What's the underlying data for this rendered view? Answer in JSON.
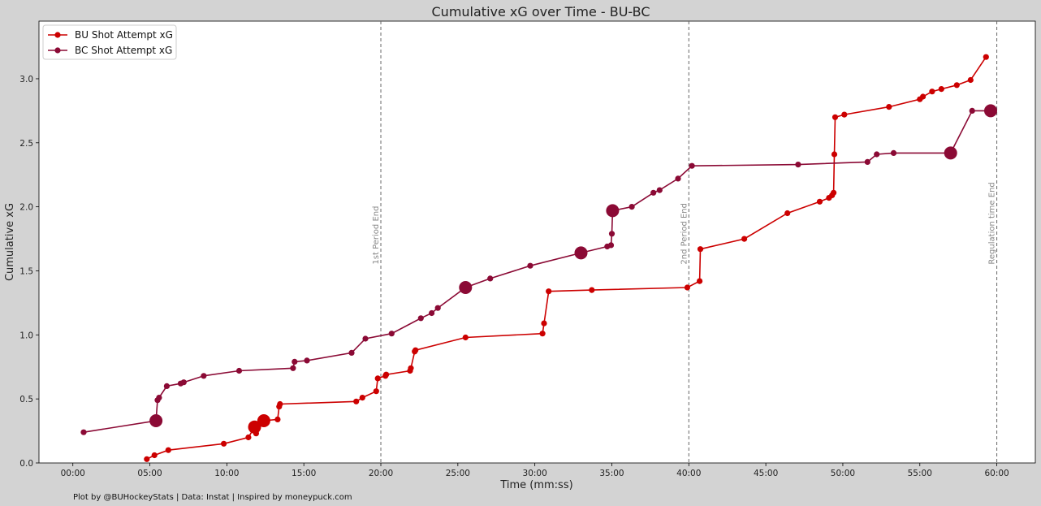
{
  "chart_data": {
    "type": "line",
    "title": "Cumulative xG over Time - BU-BC",
    "xlabel": "Time (mm:ss)",
    "ylabel": "Cumulative xG",
    "xlim": [
      -2.2,
      62.5
    ],
    "ylim": [
      0,
      3.45
    ],
    "x_ticks": [
      0,
      5,
      10,
      15,
      20,
      25,
      30,
      35,
      40,
      45,
      50,
      55,
      60
    ],
    "x_tick_labels": [
      "00:00",
      "05:00",
      "10:00",
      "15:00",
      "20:00",
      "25:00",
      "30:00",
      "35:00",
      "40:00",
      "45:00",
      "50:00",
      "55:00",
      "60:00"
    ],
    "y_ticks": [
      0.0,
      0.5,
      1.0,
      1.5,
      2.0,
      2.5,
      3.0
    ],
    "y_tick_labels": [
      "0.0",
      "0.5",
      "1.0",
      "1.5",
      "2.0",
      "2.5",
      "3.0"
    ],
    "legend_position": "top-left",
    "grid": false,
    "vertical_lines": [
      {
        "x": 20,
        "label": "1st Period End"
      },
      {
        "x": 40,
        "label": "2nd Period End"
      },
      {
        "x": 60,
        "label": "Regulation time End"
      }
    ],
    "series": [
      {
        "name": "BU Shot Attempt xG",
        "color": "#cc0000",
        "points": [
          {
            "x": 4.8,
            "y": 0.03
          },
          {
            "x": 5.3,
            "y": 0.06
          },
          {
            "x": 6.2,
            "y": 0.1
          },
          {
            "x": 9.8,
            "y": 0.15
          },
          {
            "x": 11.4,
            "y": 0.2
          },
          {
            "x": 11.8,
            "y": 0.28,
            "goal": true
          },
          {
            "x": 11.9,
            "y": 0.23
          },
          {
            "x": 12.4,
            "y": 0.33,
            "goal": true
          },
          {
            "x": 13.3,
            "y": 0.34
          },
          {
            "x": 13.4,
            "y": 0.44
          },
          {
            "x": 13.45,
            "y": 0.46
          },
          {
            "x": 18.4,
            "y": 0.48
          },
          {
            "x": 18.8,
            "y": 0.51
          },
          {
            "x": 19.7,
            "y": 0.56
          },
          {
            "x": 19.8,
            "y": 0.66
          },
          {
            "x": 20.3,
            "y": 0.68
          },
          {
            "x": 20.35,
            "y": 0.69
          },
          {
            "x": 21.9,
            "y": 0.72
          },
          {
            "x": 21.95,
            "y": 0.74
          },
          {
            "x": 22.2,
            "y": 0.87
          },
          {
            "x": 22.25,
            "y": 0.88
          },
          {
            "x": 25.5,
            "y": 0.98
          },
          {
            "x": 30.5,
            "y": 1.01
          },
          {
            "x": 30.6,
            "y": 1.09
          },
          {
            "x": 30.9,
            "y": 1.34
          },
          {
            "x": 33.7,
            "y": 1.35
          },
          {
            "x": 39.9,
            "y": 1.37
          },
          {
            "x": 40.7,
            "y": 1.42
          },
          {
            "x": 40.75,
            "y": 1.67
          },
          {
            "x": 43.6,
            "y": 1.75
          },
          {
            "x": 46.4,
            "y": 1.95
          },
          {
            "x": 48.5,
            "y": 2.04
          },
          {
            "x": 49.1,
            "y": 2.07
          },
          {
            "x": 49.3,
            "y": 2.09
          },
          {
            "x": 49.4,
            "y": 2.11
          },
          {
            "x": 49.45,
            "y": 2.41
          },
          {
            "x": 49.5,
            "y": 2.7
          },
          {
            "x": 50.1,
            "y": 2.72
          },
          {
            "x": 53.0,
            "y": 2.78
          },
          {
            "x": 55.0,
            "y": 2.84
          },
          {
            "x": 55.2,
            "y": 2.86
          },
          {
            "x": 55.8,
            "y": 2.9
          },
          {
            "x": 56.4,
            "y": 2.92
          },
          {
            "x": 57.4,
            "y": 2.95
          },
          {
            "x": 58.3,
            "y": 2.99
          },
          {
            "x": 59.3,
            "y": 3.17
          }
        ]
      },
      {
        "name": "BC Shot Attempt xG",
        "color": "#8b0a35",
        "points": [
          {
            "x": 0.7,
            "y": 0.24
          },
          {
            "x": 5.4,
            "y": 0.33,
            "goal": true
          },
          {
            "x": 5.5,
            "y": 0.49
          },
          {
            "x": 5.6,
            "y": 0.51
          },
          {
            "x": 6.1,
            "y": 0.6
          },
          {
            "x": 7.0,
            "y": 0.62
          },
          {
            "x": 7.2,
            "y": 0.63
          },
          {
            "x": 8.5,
            "y": 0.68
          },
          {
            "x": 10.8,
            "y": 0.72
          },
          {
            "x": 14.3,
            "y": 0.74
          },
          {
            "x": 14.4,
            "y": 0.79
          },
          {
            "x": 15.2,
            "y": 0.8
          },
          {
            "x": 18.1,
            "y": 0.86
          },
          {
            "x": 19.0,
            "y": 0.97
          },
          {
            "x": 20.7,
            "y": 1.01
          },
          {
            "x": 22.6,
            "y": 1.13
          },
          {
            "x": 23.3,
            "y": 1.17
          },
          {
            "x": 23.7,
            "y": 1.21
          },
          {
            "x": 25.5,
            "y": 1.37,
            "goal": true
          },
          {
            "x": 27.1,
            "y": 1.44
          },
          {
            "x": 29.7,
            "y": 1.54
          },
          {
            "x": 33.0,
            "y": 1.64,
            "goal": true
          },
          {
            "x": 34.7,
            "y": 1.69
          },
          {
            "x": 34.95,
            "y": 1.7
          },
          {
            "x": 35.0,
            "y": 1.79
          },
          {
            "x": 35.05,
            "y": 1.97,
            "goal": true
          },
          {
            "x": 36.3,
            "y": 2.0
          },
          {
            "x": 37.7,
            "y": 2.11
          },
          {
            "x": 38.1,
            "y": 2.13
          },
          {
            "x": 39.3,
            "y": 2.22
          },
          {
            "x": 40.2,
            "y": 2.32
          },
          {
            "x": 47.1,
            "y": 2.33
          },
          {
            "x": 51.6,
            "y": 2.35
          },
          {
            "x": 52.2,
            "y": 2.41
          },
          {
            "x": 53.3,
            "y": 2.42
          },
          {
            "x": 57.0,
            "y": 2.42,
            "goal": true
          },
          {
            "x": 58.4,
            "y": 2.75
          },
          {
            "x": 59.6,
            "y": 2.75,
            "goal": true
          }
        ]
      }
    ]
  },
  "credit": "Plot by @BUHockeyStats | Data: Instat | Inspired by moneypuck.com"
}
